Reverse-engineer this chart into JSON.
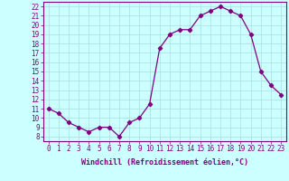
{
  "x": [
    0,
    1,
    2,
    3,
    4,
    5,
    6,
    7,
    8,
    9,
    10,
    11,
    12,
    13,
    14,
    15,
    16,
    17,
    18,
    19,
    20,
    21,
    22,
    23
  ],
  "y": [
    11,
    10.5,
    9.5,
    9,
    8.5,
    9,
    9,
    8,
    9.5,
    10,
    11.5,
    17.5,
    19,
    19.5,
    19.5,
    21,
    21.5,
    22,
    21.5,
    21,
    19,
    15,
    13.5,
    12.5
  ],
  "line_color": "#800080",
  "marker": "D",
  "marker_size": 2.2,
  "xlabel": "Windchill (Refroidissement éolien,°C)",
  "xlabel_color": "#800080",
  "bg_color": "#ccffff",
  "grid_color": "#aadddd",
  "tick_color": "#800080",
  "ylim": [
    7.5,
    22.5
  ],
  "xlim": [
    -0.5,
    23.5
  ],
  "yticks": [
    8,
    9,
    10,
    11,
    12,
    13,
    14,
    15,
    16,
    17,
    18,
    19,
    20,
    21,
    22
  ],
  "xticks": [
    0,
    1,
    2,
    3,
    4,
    5,
    6,
    7,
    8,
    9,
    10,
    11,
    12,
    13,
    14,
    15,
    16,
    17,
    18,
    19,
    20,
    21,
    22,
    23
  ],
  "tick_fontsize": 5.5,
  "xlabel_fontsize": 6.0
}
